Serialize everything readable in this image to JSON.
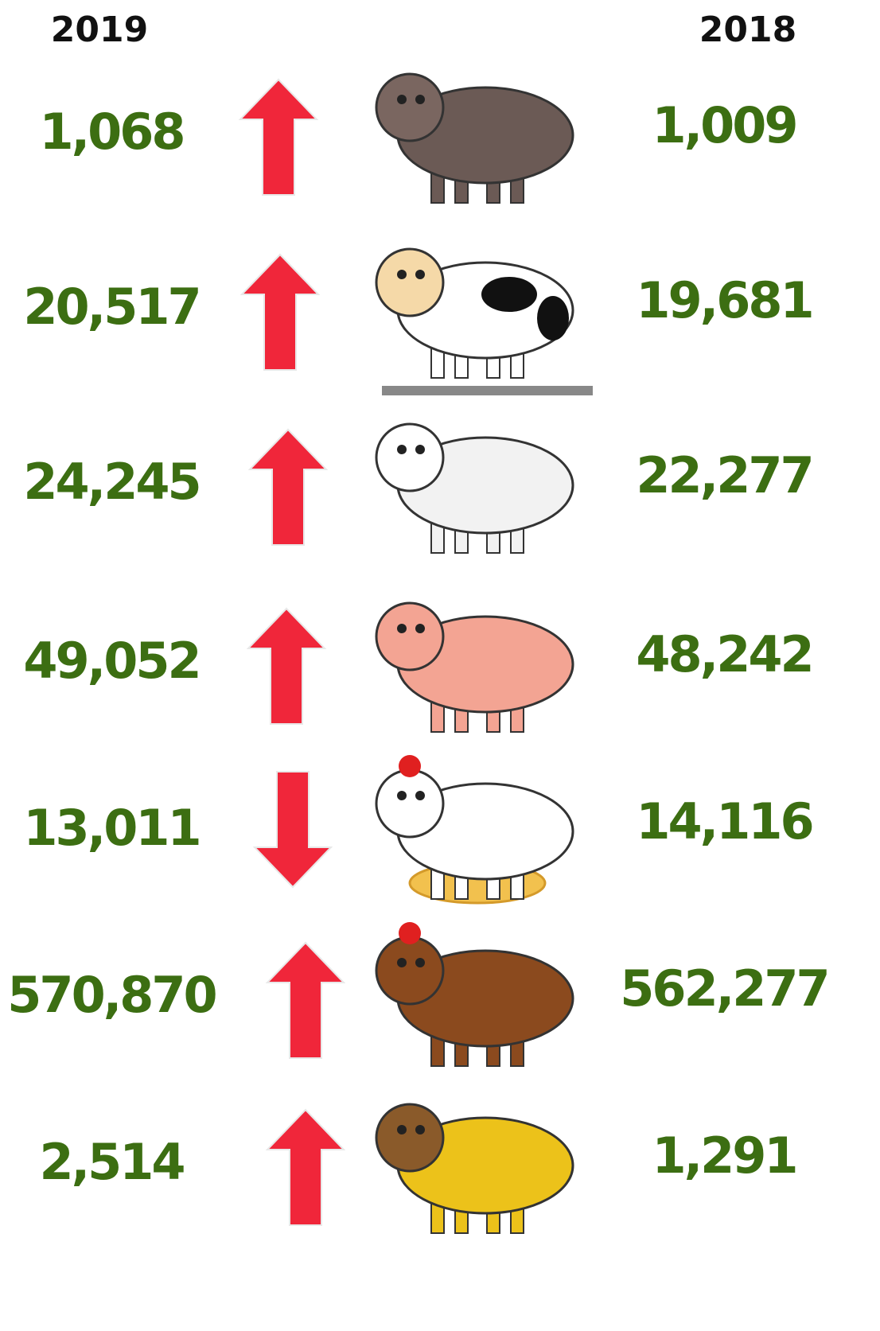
{
  "header": {
    "left": "2019",
    "right": "2018"
  },
  "rows": [
    {
      "left": "1,068",
      "right": "1,009"
    },
    {
      "left": "20,517",
      "right": "19,681"
    },
    {
      "left": "24,245",
      "right": "22,277"
    },
    {
      "left": "49,052",
      "right": "48,242"
    },
    {
      "left": "13,011",
      "right": "14,116"
    },
    {
      "left": "570,870",
      "right": "562,277"
    },
    {
      "left": "2,514",
      "right": "1,291"
    }
  ]
}
